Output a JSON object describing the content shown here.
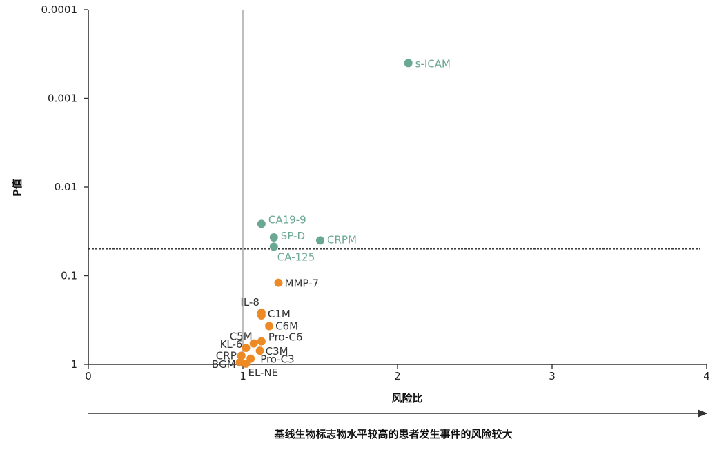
{
  "chart_data": {
    "type": "scatter",
    "title": "",
    "xlabel": "风险比",
    "ylabel": "P值",
    "caption": "基线生物标志物水平较高的患者发生事件的风险较大",
    "xlim": [
      0,
      4
    ],
    "x_ticks": [
      "0",
      "1",
      "2",
      "3",
      "4"
    ],
    "y_scale": "log (inverted)",
    "ylim": [
      1,
      0.0001
    ],
    "y_ticks": [
      "0.0001",
      "0.001",
      "0.01",
      "0.1",
      "1"
    ],
    "reference_lines": {
      "vertical_x": 1,
      "horizontal_p": 0.05
    },
    "grid": false,
    "colors": {
      "significant": "#6aa892",
      "not_significant": "#ee8a25",
      "axis": "#333333"
    },
    "series": [
      {
        "group": "significant",
        "points": [
          {
            "label": "s-ICAM",
            "x": 2.07,
            "y": 0.0004
          },
          {
            "label": "CA19-9",
            "x": 1.12,
            "y": 0.026
          },
          {
            "label": "SP-D",
            "x": 1.2,
            "y": 0.037
          },
          {
            "label": "CRPM",
            "x": 1.5,
            "y": 0.04
          },
          {
            "label": "CA-125",
            "x": 1.2,
            "y": 0.047
          }
        ]
      },
      {
        "group": "not_significant",
        "points": [
          {
            "label": "MMP-7",
            "x": 1.23,
            "y": 0.12
          },
          {
            "label": "IL-8",
            "x": 1.12,
            "y": 0.26
          },
          {
            "label": "C1M",
            "x": 1.12,
            "y": 0.28
          },
          {
            "label": "C6M",
            "x": 1.17,
            "y": 0.37
          },
          {
            "label": "C5M",
            "x": 1.07,
            "y": 0.58
          },
          {
            "label": "Pro-C6",
            "x": 1.12,
            "y": 0.55
          },
          {
            "label": "KL-6",
            "x": 1.02,
            "y": 0.65
          },
          {
            "label": "C3M",
            "x": 1.11,
            "y": 0.7
          },
          {
            "label": "CRP",
            "x": 0.99,
            "y": 0.8
          },
          {
            "label": "Pro-C3",
            "x": 1.05,
            "y": 0.86
          },
          {
            "label": "BGM",
            "x": 0.98,
            "y": 0.95
          },
          {
            "label": "EL-NE",
            "x": 1.02,
            "y": 0.98
          }
        ]
      }
    ]
  }
}
